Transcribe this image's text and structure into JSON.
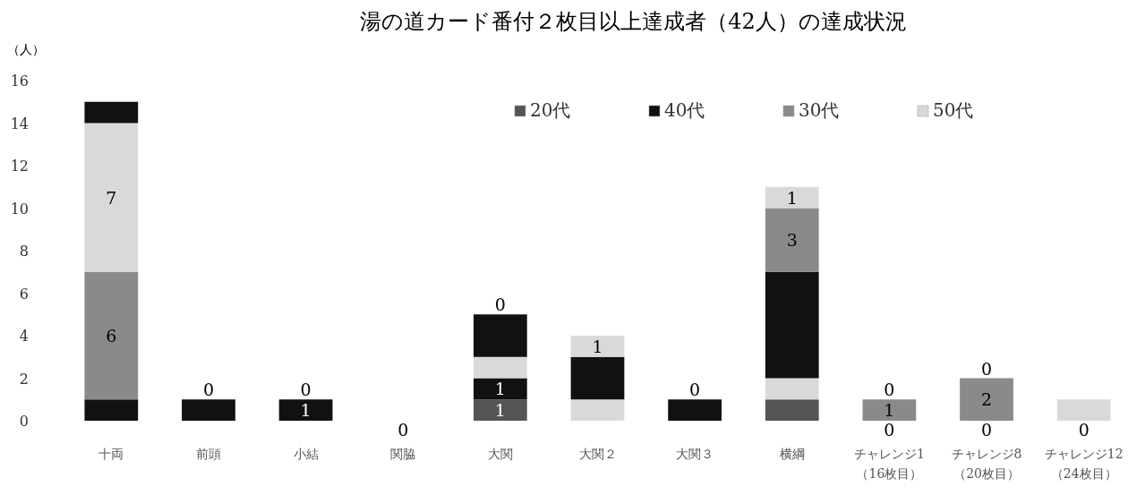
{
  "chart_data": {
    "type": "bar",
    "stacked": true,
    "title": "湯の道カード番付２枚目以上達成者（42人）の達成状況",
    "ylabel": "（人）",
    "categories": [
      "十両",
      "前頭",
      "小結",
      "関脇",
      "大関",
      "大関２",
      "大関３",
      "横綱",
      "チャレンジ1\n（16枚目）",
      "チャレンジ8\n（20枚目）",
      "チャレンジ12\n（24枚目）"
    ],
    "ylim": [
      0,
      16
    ],
    "yticks": [
      0,
      2,
      4,
      6,
      8,
      10,
      12,
      14,
      16
    ],
    "grid": false,
    "legend": "top right",
    "series": [
      {
        "name": "20代",
        "color": "#555555",
        "values": [
          0,
          0,
          0,
          0,
          1,
          0,
          0,
          1,
          0,
          0,
          0
        ],
        "value_labels": [
          null,
          null,
          null,
          "0",
          "1",
          null,
          null,
          null,
          "0",
          "0",
          "0"
        ]
      },
      {
        "name": "40代",
        "color": "#111111",
        "values": [
          1,
          1,
          1,
          0,
          1,
          0,
          1,
          0,
          0,
          0,
          0
        ],
        "value_labels": [
          null,
          null,
          "1",
          null,
          "1",
          null,
          null,
          null,
          null,
          null,
          null
        ]
      },
      {
        "name": "30代",
        "color": "#8a8a8a",
        "values": [
          6,
          0,
          0,
          0,
          0,
          0,
          0,
          0,
          1,
          2,
          0
        ],
        "value_labels": [
          "6",
          null,
          null,
          null,
          null,
          null,
          null,
          null,
          "1",
          "2",
          null
        ]
      },
      {
        "name": "50代",
        "color": "#d9d9d9",
        "values": [
          7,
          0,
          0,
          0,
          1,
          1,
          0,
          1,
          0,
          0,
          1
        ],
        "value_labels": [
          "7",
          "0",
          "0",
          null,
          null,
          null,
          "0",
          null,
          "0",
          "0",
          null
        ]
      },
      {
        "color": "#111111",
        "values": [
          1,
          0,
          0,
          0,
          2,
          2,
          0,
          5,
          0,
          0,
          0
        ]
      },
      {
        "color": "#8a8a8a",
        "values": [
          0,
          0,
          0,
          0,
          0,
          0,
          0,
          3,
          0,
          0,
          0
        ],
        "value_labels": [
          null,
          null,
          null,
          null,
          null,
          null,
          null,
          "3",
          null,
          null,
          null
        ]
      },
      {
        "color": "#d9d9d9",
        "values": [
          0,
          0,
          0,
          0,
          0,
          1,
          0,
          1,
          0,
          0,
          0
        ],
        "value_labels": [
          null,
          null,
          null,
          null,
          "0",
          "1",
          null,
          "1",
          null,
          null,
          null
        ]
      }
    ]
  }
}
